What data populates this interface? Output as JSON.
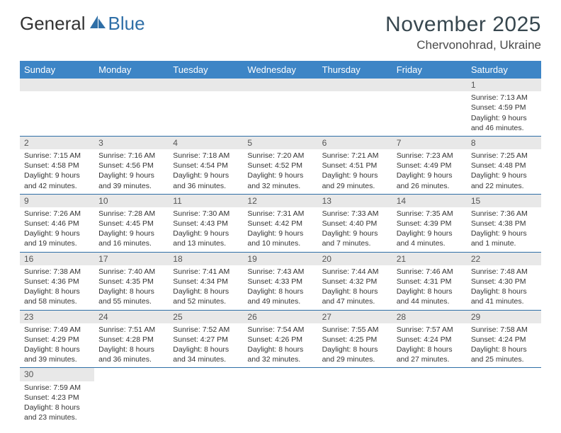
{
  "brand": {
    "part1": "General",
    "part2": "Blue"
  },
  "title": "November 2025",
  "location": "Chervonohrad, Ukraine",
  "colors": {
    "header_bg": "#3d85c6",
    "row_divider": "#2f6fa7",
    "daynum_bg": "#e8e8e8",
    "brand_blue": "#2f6fa7"
  },
  "day_headers": [
    "Sunday",
    "Monday",
    "Tuesday",
    "Wednesday",
    "Thursday",
    "Friday",
    "Saturday"
  ],
  "weeks": [
    [
      null,
      null,
      null,
      null,
      null,
      null,
      {
        "n": "1",
        "sunrise": "Sunrise: 7:13 AM",
        "sunset": "Sunset: 4:59 PM",
        "daylight": "Daylight: 9 hours and 46 minutes."
      }
    ],
    [
      {
        "n": "2",
        "sunrise": "Sunrise: 7:15 AM",
        "sunset": "Sunset: 4:58 PM",
        "daylight": "Daylight: 9 hours and 42 minutes."
      },
      {
        "n": "3",
        "sunrise": "Sunrise: 7:16 AM",
        "sunset": "Sunset: 4:56 PM",
        "daylight": "Daylight: 9 hours and 39 minutes."
      },
      {
        "n": "4",
        "sunrise": "Sunrise: 7:18 AM",
        "sunset": "Sunset: 4:54 PM",
        "daylight": "Daylight: 9 hours and 36 minutes."
      },
      {
        "n": "5",
        "sunrise": "Sunrise: 7:20 AM",
        "sunset": "Sunset: 4:52 PM",
        "daylight": "Daylight: 9 hours and 32 minutes."
      },
      {
        "n": "6",
        "sunrise": "Sunrise: 7:21 AM",
        "sunset": "Sunset: 4:51 PM",
        "daylight": "Daylight: 9 hours and 29 minutes."
      },
      {
        "n": "7",
        "sunrise": "Sunrise: 7:23 AM",
        "sunset": "Sunset: 4:49 PM",
        "daylight": "Daylight: 9 hours and 26 minutes."
      },
      {
        "n": "8",
        "sunrise": "Sunrise: 7:25 AM",
        "sunset": "Sunset: 4:48 PM",
        "daylight": "Daylight: 9 hours and 22 minutes."
      }
    ],
    [
      {
        "n": "9",
        "sunrise": "Sunrise: 7:26 AM",
        "sunset": "Sunset: 4:46 PM",
        "daylight": "Daylight: 9 hours and 19 minutes."
      },
      {
        "n": "10",
        "sunrise": "Sunrise: 7:28 AM",
        "sunset": "Sunset: 4:45 PM",
        "daylight": "Daylight: 9 hours and 16 minutes."
      },
      {
        "n": "11",
        "sunrise": "Sunrise: 7:30 AM",
        "sunset": "Sunset: 4:43 PM",
        "daylight": "Daylight: 9 hours and 13 minutes."
      },
      {
        "n": "12",
        "sunrise": "Sunrise: 7:31 AM",
        "sunset": "Sunset: 4:42 PM",
        "daylight": "Daylight: 9 hours and 10 minutes."
      },
      {
        "n": "13",
        "sunrise": "Sunrise: 7:33 AM",
        "sunset": "Sunset: 4:40 PM",
        "daylight": "Daylight: 9 hours and 7 minutes."
      },
      {
        "n": "14",
        "sunrise": "Sunrise: 7:35 AM",
        "sunset": "Sunset: 4:39 PM",
        "daylight": "Daylight: 9 hours and 4 minutes."
      },
      {
        "n": "15",
        "sunrise": "Sunrise: 7:36 AM",
        "sunset": "Sunset: 4:38 PM",
        "daylight": "Daylight: 9 hours and 1 minute."
      }
    ],
    [
      {
        "n": "16",
        "sunrise": "Sunrise: 7:38 AM",
        "sunset": "Sunset: 4:36 PM",
        "daylight": "Daylight: 8 hours and 58 minutes."
      },
      {
        "n": "17",
        "sunrise": "Sunrise: 7:40 AM",
        "sunset": "Sunset: 4:35 PM",
        "daylight": "Daylight: 8 hours and 55 minutes."
      },
      {
        "n": "18",
        "sunrise": "Sunrise: 7:41 AM",
        "sunset": "Sunset: 4:34 PM",
        "daylight": "Daylight: 8 hours and 52 minutes."
      },
      {
        "n": "19",
        "sunrise": "Sunrise: 7:43 AM",
        "sunset": "Sunset: 4:33 PM",
        "daylight": "Daylight: 8 hours and 49 minutes."
      },
      {
        "n": "20",
        "sunrise": "Sunrise: 7:44 AM",
        "sunset": "Sunset: 4:32 PM",
        "daylight": "Daylight: 8 hours and 47 minutes."
      },
      {
        "n": "21",
        "sunrise": "Sunrise: 7:46 AM",
        "sunset": "Sunset: 4:31 PM",
        "daylight": "Daylight: 8 hours and 44 minutes."
      },
      {
        "n": "22",
        "sunrise": "Sunrise: 7:48 AM",
        "sunset": "Sunset: 4:30 PM",
        "daylight": "Daylight: 8 hours and 41 minutes."
      }
    ],
    [
      {
        "n": "23",
        "sunrise": "Sunrise: 7:49 AM",
        "sunset": "Sunset: 4:29 PM",
        "daylight": "Daylight: 8 hours and 39 minutes."
      },
      {
        "n": "24",
        "sunrise": "Sunrise: 7:51 AM",
        "sunset": "Sunset: 4:28 PM",
        "daylight": "Daylight: 8 hours and 36 minutes."
      },
      {
        "n": "25",
        "sunrise": "Sunrise: 7:52 AM",
        "sunset": "Sunset: 4:27 PM",
        "daylight": "Daylight: 8 hours and 34 minutes."
      },
      {
        "n": "26",
        "sunrise": "Sunrise: 7:54 AM",
        "sunset": "Sunset: 4:26 PM",
        "daylight": "Daylight: 8 hours and 32 minutes."
      },
      {
        "n": "27",
        "sunrise": "Sunrise: 7:55 AM",
        "sunset": "Sunset: 4:25 PM",
        "daylight": "Daylight: 8 hours and 29 minutes."
      },
      {
        "n": "28",
        "sunrise": "Sunrise: 7:57 AM",
        "sunset": "Sunset: 4:24 PM",
        "daylight": "Daylight: 8 hours and 27 minutes."
      },
      {
        "n": "29",
        "sunrise": "Sunrise: 7:58 AM",
        "sunset": "Sunset: 4:24 PM",
        "daylight": "Daylight: 8 hours and 25 minutes."
      }
    ],
    [
      {
        "n": "30",
        "sunrise": "Sunrise: 7:59 AM",
        "sunset": "Sunset: 4:23 PM",
        "daylight": "Daylight: 8 hours and 23 minutes."
      },
      null,
      null,
      null,
      null,
      null,
      null
    ]
  ]
}
